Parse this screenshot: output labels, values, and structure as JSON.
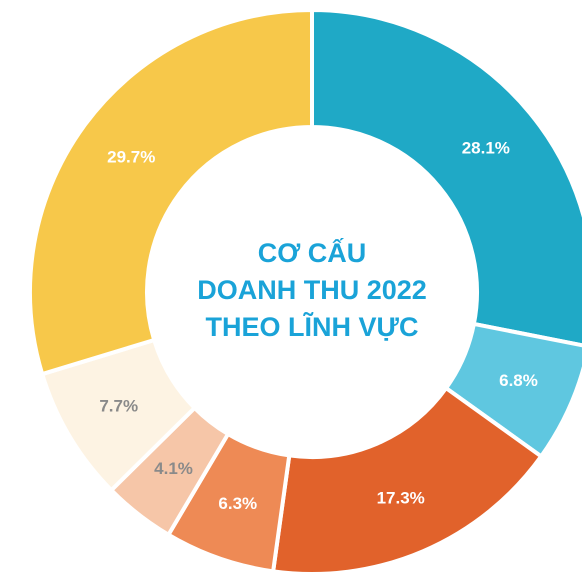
{
  "chart_data": {
    "type": "donut",
    "title_lines": [
      "CƠ CẤU",
      "DOANH THU 2022",
      "THEO LĨNH VỰC"
    ],
    "values": [
      28.1,
      6.8,
      17.3,
      6.3,
      4.1,
      7.7,
      29.7
    ],
    "value_labels": [
      "28.1%",
      "6.8%",
      "17.3%",
      "6.3%",
      "4.1%",
      "7.7%",
      "29.7%"
    ],
    "colors": [
      "#1fa9c6",
      "#5fc7e0",
      "#e1622b",
      "#ee8a55",
      "#f6c6a8",
      "#fdf3e3",
      "#f7c84a"
    ],
    "label_colors": [
      "#ffffff",
      "#ffffff",
      "#ffffff",
      "#ffffff",
      "#8a8a8a",
      "#8a8a8a",
      "#ffffff"
    ],
    "title_color": "#1aa3d8"
  }
}
